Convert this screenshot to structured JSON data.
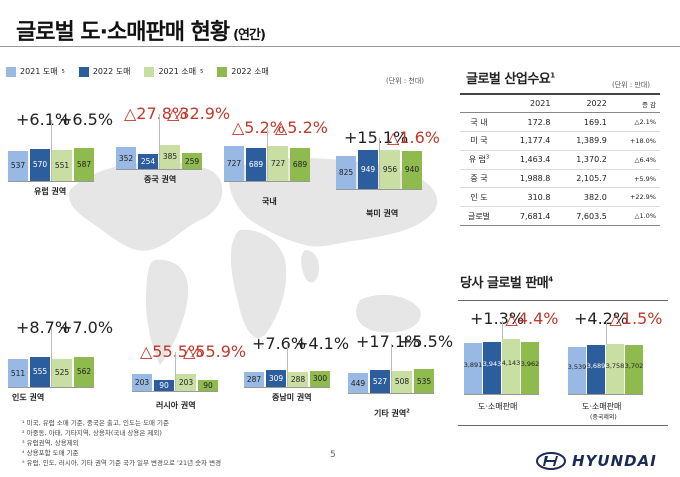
{
  "page": {
    "title": "글로벌 도·소매판매 현황",
    "title_sub": "(연간)",
    "unit_left": "(단위 : 천대)",
    "page_number": "5",
    "logo_text": "HYUNDAI",
    "colors": {
      "wholesale_2021": "#98b9e3",
      "wholesale_2022": "#2c5d9c",
      "retail_2021": "#c8dea2",
      "retail_2022": "#8fba4e",
      "negative_text": "#c0392b"
    }
  },
  "legend": [
    {
      "label": "2021 도매",
      "sup": "5",
      "color": "#98b9e3"
    },
    {
      "label": "2022 도매",
      "sup": "",
      "color": "#2c5d9c"
    },
    {
      "label": "2021 소매",
      "sup": "5",
      "color": "#c8dea2"
    },
    {
      "label": "2022 소매",
      "sup": "",
      "color": "#8fba4e"
    }
  ],
  "chart_data": {
    "type": "bar",
    "series_names": [
      "2021 도매",
      "2022 도매",
      "2021 소매",
      "2022 소매"
    ],
    "regions": [
      {
        "name": "유럽 권역",
        "values": [
          537,
          570,
          551,
          587
        ],
        "wholesale_change": "+6.1%",
        "retail_change": "+6.5%"
      },
      {
        "name": "중국 권역",
        "values": [
          352,
          254,
          385,
          259
        ],
        "wholesale_change": "△27.8%",
        "retail_change": "△32.9%"
      },
      {
        "name": "국내",
        "values": [
          727,
          689,
          727,
          689
        ],
        "wholesale_change": "△5.2%",
        "retail_change": "△5.2%"
      },
      {
        "name": "북미 권역",
        "values": [
          825,
          949,
          956,
          940
        ],
        "wholesale_change": "+15.1%",
        "retail_change": "△1.6%"
      },
      {
        "name": "인도 권역",
        "values": [
          511,
          555,
          525,
          562
        ],
        "wholesale_change": "+8.7%",
        "retail_change": "+7.0%"
      },
      {
        "name": "러시아 권역",
        "values": [
          203,
          90,
          203,
          90
        ],
        "wholesale_change": "△55.5%",
        "retail_change": "△55.9%"
      },
      {
        "name": "중남미 권역",
        "values": [
          287,
          309,
          288,
          300
        ],
        "wholesale_change": "+7.6%",
        "retail_change": "+4.1%"
      },
      {
        "name": "기타 권역",
        "name_sup": "2",
        "values": [
          449,
          527,
          508,
          535
        ],
        "wholesale_change": "+17.1%",
        "retail_change": "+5.5%"
      }
    ],
    "company_sales": [
      {
        "name": "도·소매판매",
        "sub": "",
        "values": [
          3891,
          3943,
          4143,
          3962
        ],
        "wholesale_change": "+1.3%",
        "retail_change": "△4.4%",
        "labels": [
          "3,891",
          "3,943",
          "4,143",
          "3,962"
        ]
      },
      {
        "name": "도·소매판매",
        "sub": "(중국제외)",
        "values": [
          3539,
          3689,
          3758,
          3702
        ],
        "wholesale_change": "+4.2%",
        "retail_change": "△1.5%",
        "labels": [
          "3,539",
          "3,689",
          "3,758",
          "3,702"
        ]
      }
    ]
  },
  "industry": {
    "title": "글로벌 산업수요",
    "title_sup": "1",
    "unit": "(단위 : 만대)",
    "headers": [
      "",
      "2021",
      "2022",
      "증 감"
    ],
    "rows": [
      {
        "region": "국 내",
        "sup": "",
        "y2021": "172.8",
        "y2022": "169.1",
        "change": "△2.1%"
      },
      {
        "region": "미 국",
        "sup": "",
        "y2021": "1,177.4",
        "y2022": "1,389.9",
        "change": "+18.0%"
      },
      {
        "region": "유 럽",
        "sup": "3",
        "y2021": "1,463.4",
        "y2022": "1,370.2",
        "change": "△6.4%"
      },
      {
        "region": "중 국",
        "sup": "",
        "y2021": "1,988.8",
        "y2022": "2,105.7",
        "change": "+5.9%"
      },
      {
        "region": "인 도",
        "sup": "",
        "y2021": "310.8",
        "y2022": "382.0",
        "change": "+22.9%"
      },
      {
        "region": "글로벌",
        "sup": "",
        "y2021": "7,681.4",
        "y2022": "7,603.5",
        "change": "△1.0%"
      }
    ]
  },
  "sales": {
    "title": "당사 글로벌 판매",
    "title_sup": "4"
  },
  "footnotes": [
    "¹ 미국, 유럽 소매 기준, 중국은 출고, 인도는 도매 기준",
    "² 아중동, 아태, 기타지역, 상용차(국내 상용은 제외)",
    "³ 유럽권역, 상용제외",
    "⁴ 상용포함 도매 기준",
    "⁵ 유럽, 인도, 러시아, 기타 권역 기준 국가 일부 변경으로 '21년 숫자 변경"
  ]
}
